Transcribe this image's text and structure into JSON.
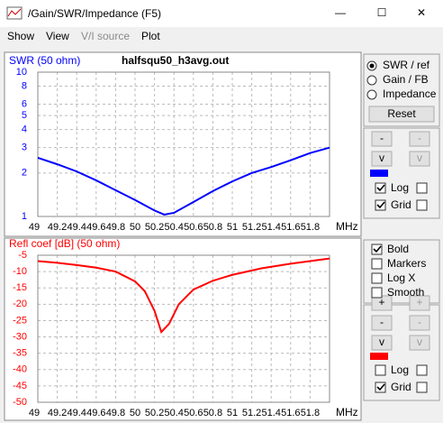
{
  "window": {
    "title": "/Gain/SWR/Impedance (F5)",
    "buttons": [
      "—",
      "☐",
      "✕"
    ]
  },
  "menu": [
    "Show",
    "View",
    "V/I source",
    "Plot"
  ],
  "charts": [
    {
      "type": "line",
      "title": "SWR (50 ohm)",
      "file": "halfsqu50_h3avg.out",
      "color": "#0000ff",
      "log_y": true,
      "grid": true,
      "x": [
        49,
        49.2,
        49.4,
        49.6,
        49.8,
        50,
        50.2,
        50.3,
        50.4,
        50.6,
        50.8,
        51,
        51.2,
        51.4,
        51.6,
        51.8,
        52
      ],
      "values": [
        2.55,
        2.3,
        2.05,
        1.78,
        1.52,
        1.3,
        1.1,
        1.03,
        1.06,
        1.26,
        1.5,
        1.75,
        2,
        2.2,
        2.45,
        2.75,
        3
      ],
      "xlim": [
        49,
        52
      ],
      "ylim": [
        1,
        10
      ],
      "xticks": [
        49,
        49.2,
        49.4,
        49.6,
        49.8,
        50,
        50.2,
        50.4,
        50.6,
        50.8,
        51,
        51.2,
        51.4,
        51.6,
        51.8
      ],
      "yticks": [
        1,
        2,
        3,
        4,
        5,
        6,
        8,
        10
      ],
      "x_unit": "MHz"
    },
    {
      "type": "line",
      "title": "Refl coef [dB] (50 ohm)",
      "color": "#ff0000",
      "log_y": false,
      "grid": true,
      "x": [
        49,
        49.2,
        49.4,
        49.6,
        49.8,
        50,
        50.1,
        50.2,
        50.27,
        50.35,
        50.45,
        50.6,
        50.8,
        51,
        51.3,
        51.6,
        51.8,
        52
      ],
      "values": [
        -6.8,
        -7.3,
        -8,
        -8.8,
        -10,
        -13,
        -16,
        -22,
        -28.5,
        -26,
        -20,
        -15.5,
        -12.8,
        -11,
        -9,
        -7.6,
        -6.8,
        -6
      ],
      "xlim": [
        49,
        52
      ],
      "ylim": [
        -50,
        -5
      ],
      "xticks": [
        49,
        49.2,
        49.4,
        49.6,
        49.8,
        50,
        50.2,
        50.4,
        50.6,
        50.8,
        51,
        51.2,
        51.4,
        51.6,
        51.8
      ],
      "yticks": [
        -5,
        -10,
        -15,
        -20,
        -25,
        -30,
        -35,
        -40,
        -45,
        -50
      ],
      "x_unit": "MHz"
    }
  ],
  "top_panel": {
    "radios": [
      {
        "label": "SWR / ref",
        "checked": true
      },
      {
        "label": "Gain / FB",
        "checked": false
      },
      {
        "label": "Impedance",
        "checked": false
      }
    ],
    "reset": "Reset",
    "buttons": [
      "-",
      "-",
      "v",
      "v"
    ],
    "checks": [
      {
        "label": "Log",
        "checked": true
      },
      {
        "label": "Grid",
        "checked": true
      }
    ]
  },
  "bottom_panel": {
    "options": [
      {
        "label": "Bold",
        "checked": true
      },
      {
        "label": "Markers",
        "checked": false
      },
      {
        "label": "Log X",
        "checked": false
      },
      {
        "label": "Smooth",
        "checked": false
      }
    ],
    "buttons": [
      "+",
      "+",
      "-",
      "-",
      "v",
      "v"
    ],
    "checks": [
      {
        "label": "Log",
        "checked": false
      },
      {
        "label": "Grid",
        "checked": true
      }
    ]
  }
}
